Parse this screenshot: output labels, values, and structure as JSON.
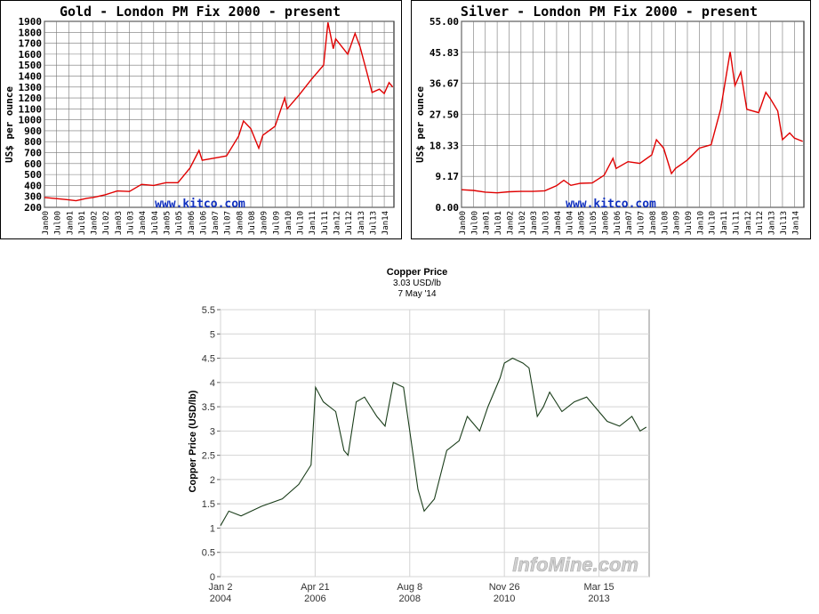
{
  "chart_data": [
    {
      "type": "line",
      "title": "Gold - London PM Fix 2000 - present",
      "ylabel": "US$ per ounce",
      "watermark": "www.kitco.com",
      "line_color": "#e00000",
      "grid": true,
      "ylim": [
        200,
        1900
      ],
      "yticks": [
        "1900",
        "1800",
        "1700",
        "1600",
        "1500",
        "1400",
        "1300",
        "1200",
        "1100",
        "1000",
        "900",
        "800",
        "700",
        "600",
        "500",
        "400",
        "300",
        "200"
      ],
      "xticks": [
        "Jan00",
        "Jul00",
        "Jan01",
        "Jul01",
        "Jan02",
        "Jul02",
        "Jan03",
        "Jul03",
        "Jan04",
        "Jul04",
        "Jan05",
        "Jul05",
        "Jan06",
        "Jul06",
        "Jan07",
        "Jul07",
        "Jan08",
        "Jul08",
        "Jan09",
        "Jul09",
        "Jan10",
        "Jul10",
        "Jan11",
        "Jul11",
        "Jan12",
        "Jul12",
        "Jan13",
        "Jul13",
        "Jan14"
      ],
      "x": [
        2000.0,
        2000.5,
        2001.0,
        2001.3,
        2001.75,
        2002.0,
        2002.5,
        2003.0,
        2003.5,
        2004.0,
        2004.5,
        2005.0,
        2005.5,
        2006.0,
        2006.37,
        2006.5,
        2007.0,
        2007.5,
        2008.0,
        2008.2,
        2008.5,
        2008.83,
        2009.0,
        2009.5,
        2009.9,
        2010.0,
        2010.5,
        2011.0,
        2011.5,
        2011.68,
        2011.9,
        2012.0,
        2012.5,
        2012.8,
        2013.0,
        2013.3,
        2013.5,
        2013.8,
        2014.0,
        2014.2,
        2014.35
      ],
      "y": [
        290,
        280,
        268,
        260,
        283,
        290,
        315,
        350,
        345,
        410,
        400,
        425,
        425,
        560,
        720,
        630,
        650,
        670,
        850,
        990,
        920,
        740,
        860,
        940,
        1200,
        1100,
        1230,
        1370,
        1500,
        1890,
        1650,
        1740,
        1600,
        1790,
        1670,
        1420,
        1250,
        1280,
        1240,
        1340,
        1300
      ]
    },
    {
      "type": "line",
      "title": "Silver - London PM Fix 2000 - present",
      "ylabel": "US$ per ounce",
      "watermark": "www.kitco.com",
      "line_color": "#e00000",
      "grid": true,
      "ylim": [
        0,
        55
      ],
      "yticks": [
        "55.00",
        "45.83",
        "36.67",
        "27.50",
        "18.33",
        "9.17",
        "0.00"
      ],
      "xticks": [
        "Jan00",
        "Jul00",
        "Jan01",
        "Jul01",
        "Jan02",
        "Jul02",
        "Jan03",
        "Jul03",
        "Jan04",
        "Jul04",
        "Jan05",
        "Jul05",
        "Jan06",
        "Jul06",
        "Jan07",
        "Jul07",
        "Jan08",
        "Jul08",
        "Jan09",
        "Jul09",
        "Jan10",
        "Jul10",
        "Jan11",
        "Jul11",
        "Jan12",
        "Jul12",
        "Jan13",
        "Jul13",
        "Jan14"
      ],
      "x": [
        2000.0,
        2000.5,
        2001.0,
        2001.5,
        2002.0,
        2002.5,
        2003.0,
        2003.5,
        2004.0,
        2004.3,
        2004.6,
        2005.0,
        2005.5,
        2006.0,
        2006.37,
        2006.5,
        2007.0,
        2007.5,
        2008.0,
        2008.2,
        2008.5,
        2008.83,
        2009.0,
        2009.5,
        2010.0,
        2010.5,
        2010.9,
        2011.3,
        2011.5,
        2011.75,
        2012.0,
        2012.5,
        2012.8,
        2013.0,
        2013.3,
        2013.5,
        2013.8,
        2014.0,
        2014.35
      ],
      "y": [
        5.2,
        5.0,
        4.5,
        4.3,
        4.6,
        4.7,
        4.7,
        4.9,
        6.4,
        8.0,
        6.5,
        7.1,
        7.2,
        9.5,
        14.5,
        11.5,
        13.5,
        13.0,
        15.5,
        20.0,
        17.5,
        10.0,
        11.5,
        14.0,
        17.5,
        18.5,
        29.0,
        46.0,
        36.0,
        40.0,
        29.0,
        28.0,
        34.0,
        32.0,
        28.5,
        20.0,
        22.0,
        20.5,
        19.5
      ]
    },
    {
      "type": "line",
      "title": "Copper Price",
      "subtitle": "3.03 USD/lb",
      "date_label": "7 May '14",
      "ylabel": "Copper Price (USD/lb)",
      "watermark": "InfoMine.com",
      "line_color": "#1a3d1a",
      "grid": true,
      "ylim": [
        0,
        5.5
      ],
      "yticks": [
        "0",
        "0.5",
        "1",
        "1.5",
        "2",
        "2.5",
        "3",
        "3.5",
        "4",
        "4.5",
        "5",
        "5.5"
      ],
      "xticks": [
        {
          "label": "Jan 2",
          "year": "2004"
        },
        {
          "label": "Apr 21",
          "year": "2006"
        },
        {
          "label": "Aug 8",
          "year": "2008"
        },
        {
          "label": "Nov 26",
          "year": "2010"
        },
        {
          "label": "Mar 15",
          "year": "2013"
        }
      ],
      "x": [
        2004.0,
        2004.2,
        2004.5,
        2005.0,
        2005.5,
        2005.9,
        2006.2,
        2006.31,
        2006.5,
        2006.8,
        2007.0,
        2007.1,
        2007.3,
        2007.5,
        2007.8,
        2008.0,
        2008.2,
        2008.45,
        2008.6,
        2008.8,
        2008.95,
        2009.2,
        2009.5,
        2009.8,
        2010.0,
        2010.3,
        2010.5,
        2010.8,
        2010.9,
        2011.1,
        2011.35,
        2011.5,
        2011.7,
        2011.85,
        2012.0,
        2012.3,
        2012.6,
        2012.9,
        2013.0,
        2013.4,
        2013.7,
        2014.0,
        2014.2,
        2014.35
      ],
      "y": [
        1.05,
        1.35,
        1.25,
        1.45,
        1.6,
        1.9,
        2.3,
        3.9,
        3.6,
        3.4,
        2.6,
        2.5,
        3.6,
        3.7,
        3.3,
        3.1,
        4.0,
        3.9,
        3.0,
        1.8,
        1.35,
        1.6,
        2.6,
        2.8,
        3.3,
        3.0,
        3.5,
        4.1,
        4.4,
        4.5,
        4.4,
        4.3,
        3.3,
        3.5,
        3.8,
        3.4,
        3.6,
        3.7,
        3.6,
        3.2,
        3.1,
        3.3,
        3.0,
        3.08
      ]
    }
  ]
}
